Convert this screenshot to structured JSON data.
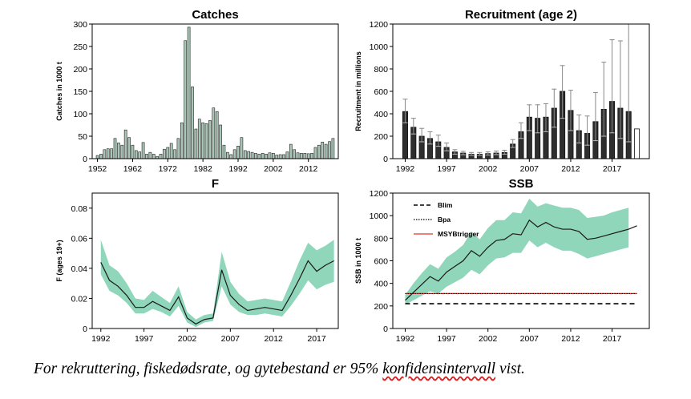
{
  "caption": {
    "part1": "For rekruttering, fiskedødsrate, og gytebestand er 95% ",
    "part2": "konfidensintervall",
    "part3": " vist."
  },
  "chart_data": [
    {
      "type": "bar",
      "title": "Catches",
      "xlabel": "",
      "ylabel": "Catches in 1000 t",
      "x": [
        1952,
        1953,
        1954,
        1955,
        1956,
        1957,
        1958,
        1959,
        1960,
        1961,
        1962,
        1963,
        1964,
        1965,
        1966,
        1967,
        1968,
        1969,
        1970,
        1971,
        1972,
        1973,
        1974,
        1975,
        1976,
        1977,
        1978,
        1979,
        1980,
        1981,
        1982,
        1983,
        1984,
        1985,
        1986,
        1987,
        1988,
        1989,
        1990,
        1991,
        1992,
        1993,
        1994,
        1995,
        1996,
        1997,
        1998,
        1999,
        2000,
        2001,
        2002,
        2003,
        2004,
        2005,
        2006,
        2007,
        2008,
        2009,
        2010,
        2011,
        2012,
        2013,
        2014,
        2015,
        2016,
        2017,
        2018,
        2019
      ],
      "values": [
        7,
        10,
        20,
        22,
        22,
        45,
        35,
        30,
        64,
        47,
        30,
        18,
        15,
        36,
        10,
        14,
        10,
        5,
        10,
        21,
        25,
        34,
        20,
        45,
        80,
        263,
        293,
        160,
        66,
        88,
        80,
        78,
        85,
        113,
        105,
        75,
        30,
        14,
        9,
        20,
        28,
        47,
        18,
        16,
        14,
        12,
        10,
        12,
        10,
        13,
        12,
        8,
        9,
        9,
        15,
        32,
        20,
        13,
        12,
        12,
        11,
        12,
        25,
        30,
        37,
        32,
        38,
        45
      ],
      "xticks": [
        "1952",
        "1962",
        "1972",
        "1982",
        "1992",
        "2002",
        "2012"
      ],
      "xtick_values": [
        1952,
        1962,
        1972,
        1982,
        1992,
        2002,
        2012
      ],
      "ylim": [
        0,
        300
      ],
      "yticks": [
        "0",
        "50",
        "100",
        "150",
        "200",
        "250",
        "300"
      ]
    },
    {
      "type": "bar",
      "title": "Recruitment (age 2)",
      "xlabel": "",
      "ylabel": "Recruitment in millions",
      "x": [
        1992,
        1993,
        1994,
        1995,
        1996,
        1997,
        1998,
        1999,
        2000,
        2001,
        2002,
        2003,
        2004,
        2005,
        2006,
        2007,
        2008,
        2009,
        2010,
        2011,
        2012,
        2013,
        2014,
        2015,
        2016,
        2017,
        2018,
        2019,
        2020
      ],
      "values": [
        420,
        280,
        200,
        180,
        150,
        100,
        60,
        50,
        40,
        40,
        45,
        50,
        55,
        130,
        240,
        370,
        360,
        370,
        450,
        600,
        430,
        250,
        225,
        330,
        440,
        510,
        450,
        420,
        265
      ],
      "lower": [
        320,
        220,
        150,
        130,
        110,
        70,
        40,
        35,
        30,
        30,
        32,
        36,
        40,
        100,
        180,
        250,
        230,
        240,
        280,
        360,
        250,
        140,
        120,
        160,
        200,
        230,
        180,
        150,
        null
      ],
      "upper": [
        530,
        360,
        270,
        240,
        210,
        140,
        80,
        65,
        55,
        55,
        60,
        68,
        75,
        170,
        320,
        480,
        480,
        490,
        620,
        830,
        610,
        390,
        380,
        590,
        860,
        1060,
        1050,
        1200,
        null
      ],
      "xticks": [
        "1992",
        "1997",
        "2002",
        "2007",
        "2012",
        "2017"
      ],
      "xtick_values": [
        1992,
        1997,
        2002,
        2007,
        2012,
        2017
      ],
      "ylim": [
        0,
        1200
      ],
      "yticks": [
        "0",
        "200",
        "400",
        "600",
        "800",
        "1000",
        "1200"
      ]
    },
    {
      "type": "line",
      "title": "F",
      "xlabel": "",
      "ylabel": "F (ages 19+)",
      "x": [
        1992,
        1993,
        1994,
        1995,
        1996,
        1997,
        1998,
        1999,
        2000,
        2001,
        2002,
        2003,
        2004,
        2005,
        2006,
        2007,
        2008,
        2009,
        2010,
        2011,
        2012,
        2013,
        2014,
        2015,
        2016,
        2017,
        2018,
        2019
      ],
      "values": [
        0.044,
        0.032,
        0.028,
        0.022,
        0.014,
        0.014,
        0.018,
        0.015,
        0.012,
        0.021,
        0.007,
        0.003,
        0.006,
        0.007,
        0.039,
        0.022,
        0.016,
        0.012,
        0.013,
        0.014,
        0.013,
        0.012,
        0.022,
        0.033,
        0.045,
        0.038,
        0.042,
        0.045
      ],
      "lower": [
        0.036,
        0.025,
        0.022,
        0.017,
        0.01,
        0.01,
        0.013,
        0.011,
        0.008,
        0.015,
        0.004,
        0.001,
        0.004,
        0.005,
        0.028,
        0.016,
        0.011,
        0.009,
        0.009,
        0.01,
        0.009,
        0.008,
        0.015,
        0.023,
        0.032,
        0.026,
        0.029,
        0.031
      ],
      "upper": [
        0.059,
        0.042,
        0.038,
        0.03,
        0.02,
        0.019,
        0.025,
        0.021,
        0.017,
        0.028,
        0.011,
        0.006,
        0.009,
        0.01,
        0.051,
        0.031,
        0.023,
        0.018,
        0.019,
        0.02,
        0.019,
        0.018,
        0.031,
        0.045,
        0.057,
        0.052,
        0.055,
        0.059
      ],
      "xticks": [
        "1992",
        "1997",
        "2002",
        "2007",
        "2012",
        "2017"
      ],
      "xtick_values": [
        1992,
        1997,
        2002,
        2007,
        2012,
        2017
      ],
      "ylim": [
        0,
        0.09
      ],
      "yticks": [
        "0",
        "0.02",
        "0.04",
        "0.06",
        "0.08"
      ],
      "ytick_values": [
        0,
        0.02,
        0.04,
        0.06,
        0.08
      ],
      "colors": {
        "band": "#8fd6bb",
        "line": "#1a1a1a"
      }
    },
    {
      "type": "line",
      "title": "SSB",
      "xlabel": "",
      "ylabel": "SSB in 1000 t",
      "x": [
        1992,
        1993,
        1994,
        1995,
        1996,
        1997,
        1998,
        1999,
        2000,
        2001,
        2002,
        2003,
        2004,
        2005,
        2006,
        2007,
        2008,
        2009,
        2010,
        2011,
        2012,
        2013,
        2014,
        2015,
        2016,
        2017,
        2018,
        2019,
        2020
      ],
      "values": [
        250,
        320,
        390,
        460,
        420,
        500,
        550,
        600,
        690,
        640,
        720,
        780,
        790,
        840,
        830,
        960,
        900,
        940,
        900,
        880,
        880,
        860,
        790,
        800,
        820,
        840,
        860,
        880,
        910
      ],
      "lower": [
        210,
        250,
        290,
        330,
        310,
        370,
        410,
        450,
        520,
        480,
        560,
        620,
        630,
        670,
        670,
        780,
        720,
        760,
        720,
        690,
        690,
        660,
        620,
        640,
        660,
        680,
        700,
        720,
        null
      ],
      "upper": [
        300,
        400,
        490,
        570,
        530,
        630,
        680,
        740,
        860,
        790,
        890,
        960,
        960,
        1030,
        1020,
        1150,
        1080,
        1110,
        1090,
        1070,
        1070,
        1050,
        980,
        990,
        1000,
        1030,
        1050,
        1070,
        null
      ],
      "Blim": 220,
      "Bpa": 310,
      "MSYBtrigger": 310,
      "legend": [
        "Blim",
        "Bpa",
        "MSYBtrigger"
      ],
      "legend_position": "top-left",
      "xticks": [
        "1992",
        "1997",
        "2002",
        "2007",
        "2012",
        "2017"
      ],
      "xtick_values": [
        1992,
        1997,
        2002,
        2007,
        2012,
        2017
      ],
      "ylim": [
        0,
        1200
      ],
      "yticks": [
        "0",
        "200",
        "400",
        "600",
        "800",
        "1000",
        "1200"
      ],
      "colors": {
        "band": "#8fd6bb",
        "line": "#1a1a1a",
        "msy": "#e0352a",
        "bar": "#2e2e2e",
        "catch_bar": "#a9c7b7"
      }
    }
  ]
}
